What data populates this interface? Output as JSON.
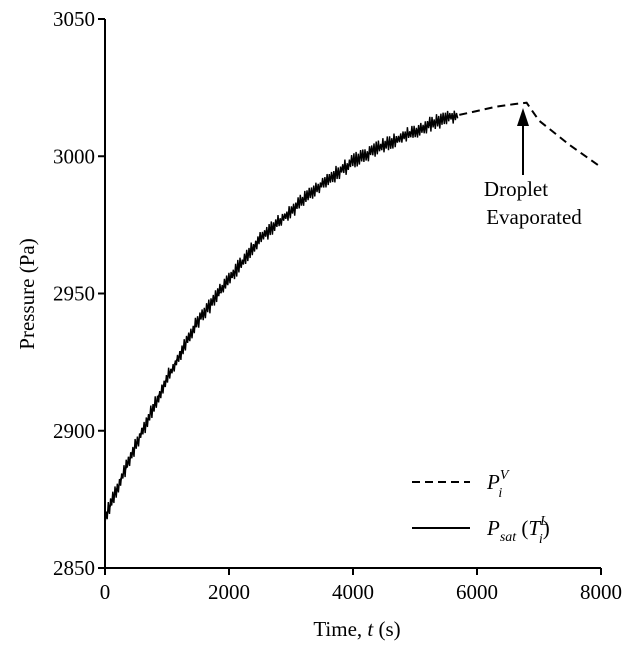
{
  "chart_data": {
    "type": "line",
    "xlabel": "Time, t (s)",
    "xlabel_prefix": "Time, ",
    "xlabel_var": "t",
    "xlabel_suffix": " (s)",
    "ylabel": "Pressure (Pa)",
    "xlim": [
      0,
      8000
    ],
    "ylim": [
      2850,
      3050
    ],
    "xticks": [
      0,
      2000,
      4000,
      6000,
      8000
    ],
    "yticks": [
      2850,
      2900,
      2950,
      3000,
      3050
    ],
    "xtick_labels": [
      "0",
      "2000",
      "4000",
      "6000",
      "8000"
    ],
    "ytick_labels": [
      "2850",
      "2900",
      "2950",
      "3000",
      "3050"
    ],
    "grid": false,
    "legend_position": "bottom-right",
    "series": [
      {
        "name": "P_i^V",
        "legend_main": "P",
        "legend_sub": "i",
        "legend_sup": "V",
        "style": "dashed",
        "x": [
          0,
          250,
          500,
          1000,
          1500,
          2000,
          2500,
          3000,
          3500,
          4000,
          4500,
          5000,
          5500,
          5700,
          6000,
          6300,
          6600,
          6800,
          7000,
          7500,
          8000
        ],
        "y": [
          2868,
          2882,
          2895,
          2919,
          2940,
          2955,
          2970,
          2980,
          2990,
          2998,
          3004,
          3009,
          3014,
          3015,
          3016.5,
          3018,
          3019,
          3019.5,
          3013,
          3004,
          2996
        ]
      },
      {
        "name": "P_sat(T_i^L)",
        "legend_main": "P",
        "legend_sub": "sat",
        "legend_arg_open": " (",
        "legend_arg_main": "T",
        "legend_arg_sub": "i",
        "legend_arg_sup": "L",
        "legend_arg_close": ")",
        "style": "solid-noisy",
        "noise_amplitude": 3,
        "x": [
          0,
          250,
          500,
          1000,
          1500,
          2000,
          2500,
          3000,
          3500,
          4000,
          4500,
          5000,
          5500,
          5700
        ],
        "y": [
          2868,
          2882,
          2895,
          2919,
          2940,
          2955,
          2970,
          2980,
          2990,
          2998,
          3004,
          3009,
          3014,
          3015
        ]
      }
    ],
    "annotations": [
      {
        "text_line1": "Droplet",
        "text_line2": "Evaporated",
        "arrow_to_x": 6800,
        "arrow_to_y": 3019
      }
    ]
  }
}
